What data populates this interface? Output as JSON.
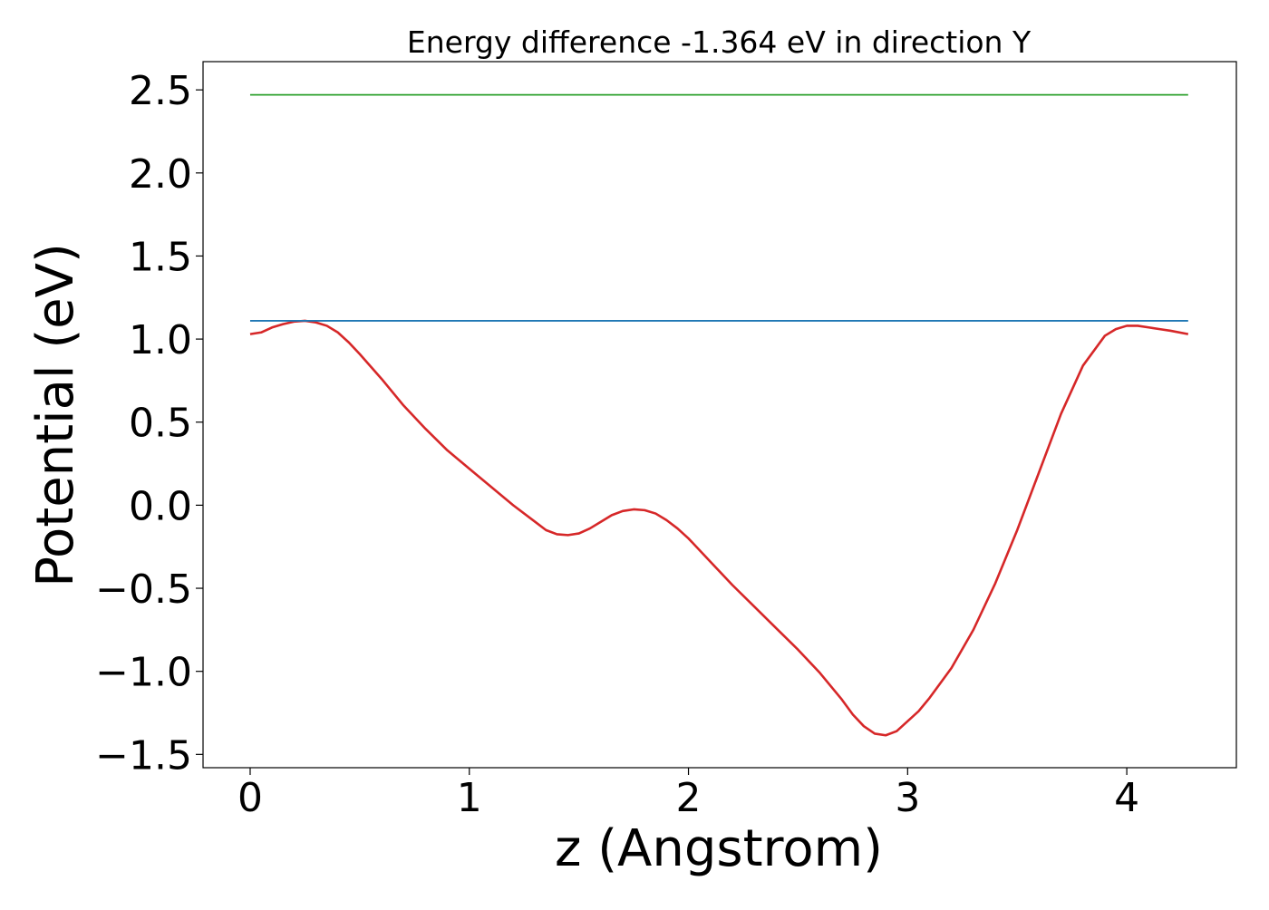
{
  "chart_data": {
    "type": "line",
    "title": "Energy difference -1.364 eV in direction Y",
    "xlabel": "z (Angstrom)",
    "ylabel": "Potential (eV)",
    "xlim": [
      -0.215,
      4.5
    ],
    "ylim": [
      -1.58,
      2.67
    ],
    "x_ticks": [
      0,
      1,
      2,
      3,
      4
    ],
    "x_tick_labels": [
      "0",
      "1",
      "2",
      "3",
      "4"
    ],
    "y_ticks": [
      -1.5,
      -1.0,
      -0.5,
      0.0,
      0.5,
      1.0,
      1.5,
      2.0,
      2.5
    ],
    "y_tick_labels": [
      "−1.5",
      "−1.0",
      "−0.5",
      "0.0",
      "0.5",
      "1.0",
      "1.5",
      "2.0",
      "2.5"
    ],
    "grid": false,
    "legend": "none",
    "series": [
      {
        "kind": "curve",
        "color": "#d62728",
        "x": [
          0.0,
          0.05,
          0.1,
          0.15,
          0.2,
          0.25,
          0.3,
          0.35,
          0.4,
          0.45,
          0.5,
          0.6,
          0.7,
          0.8,
          0.9,
          1.0,
          1.1,
          1.2,
          1.3,
          1.35,
          1.4,
          1.45,
          1.5,
          1.55,
          1.6,
          1.65,
          1.7,
          1.75,
          1.8,
          1.85,
          1.9,
          1.95,
          2.0,
          2.1,
          2.2,
          2.3,
          2.4,
          2.5,
          2.6,
          2.7,
          2.75,
          2.8,
          2.85,
          2.9,
          2.95,
          3.0,
          3.05,
          3.1,
          3.2,
          3.3,
          3.4,
          3.5,
          3.6,
          3.7,
          3.8,
          3.9,
          3.95,
          4.0,
          4.05,
          4.1,
          4.15,
          4.2,
          4.28
        ],
        "y": [
          1.03,
          1.04,
          1.07,
          1.09,
          1.105,
          1.11,
          1.1,
          1.08,
          1.04,
          0.98,
          0.91,
          0.76,
          0.6,
          0.46,
          0.33,
          0.22,
          0.11,
          0.0,
          -0.1,
          -0.15,
          -0.175,
          -0.18,
          -0.17,
          -0.14,
          -0.1,
          -0.06,
          -0.035,
          -0.025,
          -0.03,
          -0.05,
          -0.09,
          -0.14,
          -0.2,
          -0.34,
          -0.48,
          -0.61,
          -0.74,
          -0.87,
          -1.01,
          -1.17,
          -1.26,
          -1.33,
          -1.375,
          -1.385,
          -1.36,
          -1.3,
          -1.24,
          -1.16,
          -0.98,
          -0.75,
          -0.47,
          -0.15,
          0.2,
          0.55,
          0.84,
          1.02,
          1.06,
          1.08,
          1.08,
          1.07,
          1.06,
          1.05,
          1.03
        ]
      },
      {
        "kind": "hline",
        "color": "#1f77b4",
        "x": [
          0.0,
          4.28
        ],
        "y": [
          1.11,
          1.11
        ]
      },
      {
        "kind": "hline",
        "color": "#2ca02c",
        "x": [
          0.0,
          4.28
        ],
        "y": [
          2.47,
          2.47
        ]
      }
    ]
  }
}
